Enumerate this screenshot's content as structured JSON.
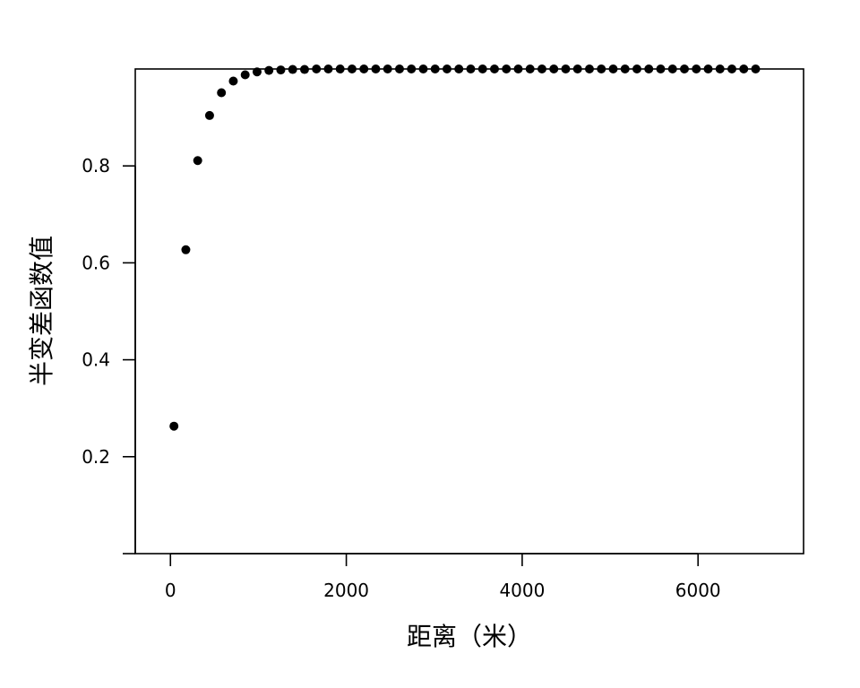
{
  "chart_data": {
    "type": "scatter",
    "xlabel": "距离（米）",
    "ylabel": "半变差函数值",
    "xlim": [
      -400,
      7200
    ],
    "ylim": [
      0,
      1.0
    ],
    "x_ticks": [
      0,
      2000,
      4000,
      6000
    ],
    "x_tick_labels": [
      "0",
      "2000",
      "4000",
      "6000"
    ],
    "y_ticks": [
      0.2,
      0.4,
      0.6,
      0.8
    ],
    "y_tick_labels": [
      "0.2",
      "0.4",
      "0.6",
      "0.8"
    ],
    "grid": false,
    "legend": "none",
    "colors": {
      "points": "#000000",
      "axes": "#000000"
    },
    "series": [
      {
        "x": [
          40,
          175,
          310,
          445,
          580,
          715,
          850,
          985,
          1120,
          1255,
          1390,
          1525,
          1660,
          1795,
          1930,
          2065,
          2200,
          2335,
          2470,
          2605,
          2740,
          2875,
          3010,
          3145,
          3280,
          3415,
          3550,
          3685,
          3820,
          3955,
          4090,
          4225,
          4360,
          4495,
          4630,
          4765,
          4900,
          5035,
          5170,
          5305,
          5440,
          5575,
          5710,
          5845,
          5980,
          6115,
          6250,
          6385,
          6520,
          6655
        ],
        "y": [
          0.263,
          0.627,
          0.811,
          0.904,
          0.951,
          0.975,
          0.988,
          0.994,
          0.997,
          0.998,
          0.999,
          0.999,
          1.0,
          1.0,
          1.0,
          1.0,
          1.0,
          1.0,
          1.0,
          1.0,
          1.0,
          1.0,
          1.0,
          1.0,
          1.0,
          1.0,
          1.0,
          1.0,
          1.0,
          1.0,
          1.0,
          1.0,
          1.0,
          1.0,
          1.0,
          1.0,
          1.0,
          1.0,
          1.0,
          1.0,
          1.0,
          1.0,
          1.0,
          1.0,
          1.0,
          1.0,
          1.0,
          1.0,
          1.0,
          1.0
        ]
      }
    ]
  }
}
